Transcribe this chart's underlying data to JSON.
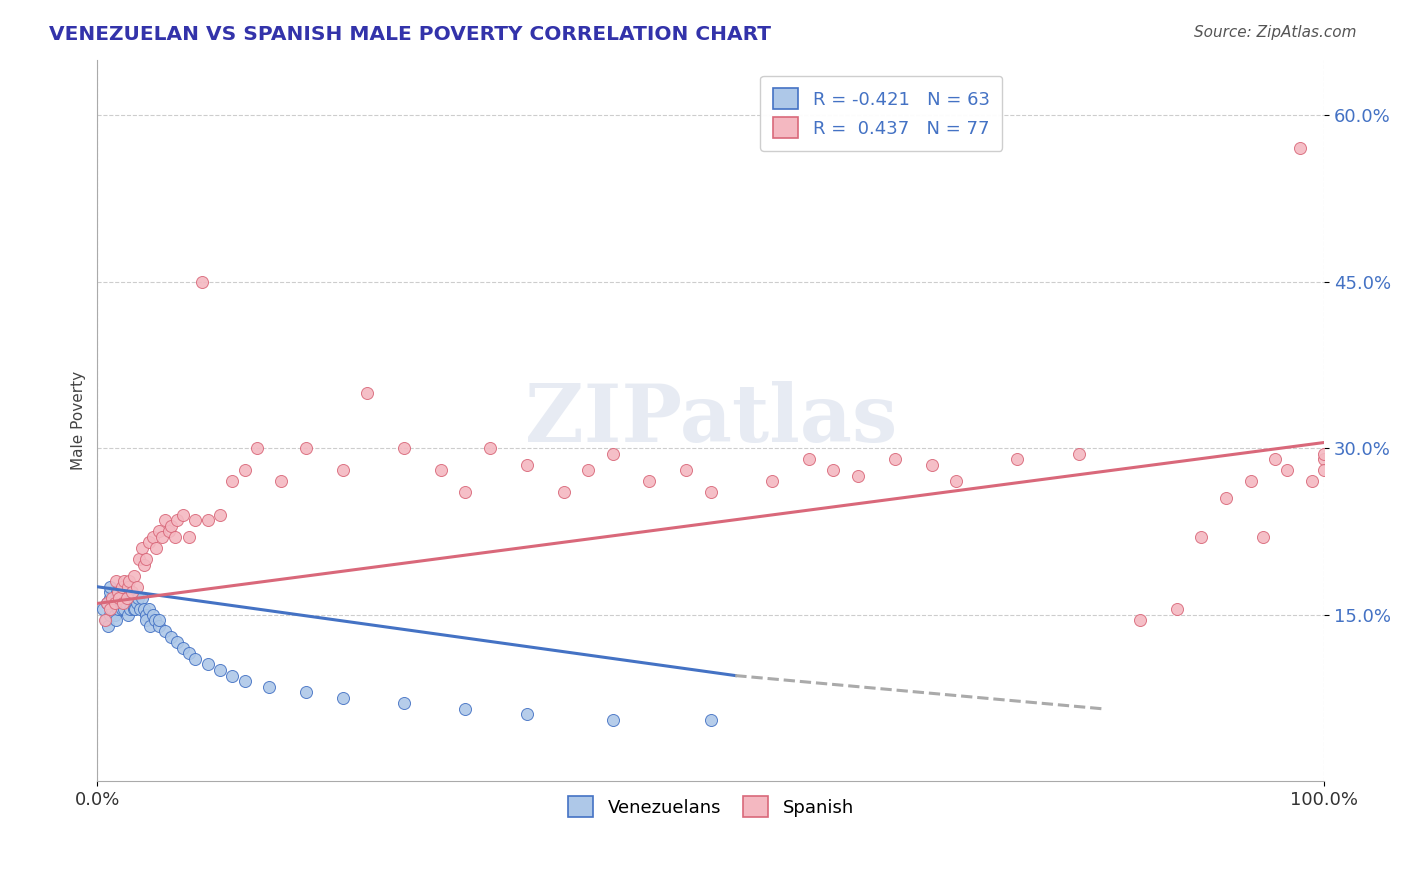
{
  "title": "VENEZUELAN VS SPANISH MALE POVERTY CORRELATION CHART",
  "source": "Source: ZipAtlas.com",
  "ylabel": "Male Poverty",
  "xlim": [
    0.0,
    1.0
  ],
  "ylim": [
    0.0,
    0.65
  ],
  "xtick_positions": [
    0.0,
    1.0
  ],
  "xtick_labels": [
    "0.0%",
    "100.0%"
  ],
  "ytick_values": [
    0.15,
    0.3,
    0.45,
    0.6
  ],
  "ytick_labels": [
    "15.0%",
    "30.0%",
    "45.0%",
    "60.0%"
  ],
  "legend_r1": "R = -0.421",
  "legend_n1": "N = 63",
  "legend_r2": "R =  0.437",
  "legend_n2": "N = 77",
  "color_venezuelan_fill": "#aec8e8",
  "color_venezuelan_edge": "#4472c4",
  "color_spanish_fill": "#f4b8c1",
  "color_spanish_edge": "#d9687a",
  "color_line_venezuelan": "#4472c4",
  "color_line_spanish": "#d9687a",
  "color_line_dash": "#aaaaaa",
  "background_color": "#ffffff",
  "watermark_text": "ZIPatlas",
  "title_color": "#3333aa",
  "source_color": "#555555",
  "ytick_color": "#4472c4",
  "venezuelan_x": [
    0.005,
    0.007,
    0.008,
    0.009,
    0.01,
    0.01,
    0.01,
    0.01,
    0.012,
    0.013,
    0.014,
    0.015,
    0.015,
    0.016,
    0.017,
    0.018,
    0.019,
    0.02,
    0.02,
    0.02,
    0.021,
    0.022,
    0.023,
    0.024,
    0.025,
    0.026,
    0.027,
    0.028,
    0.029,
    0.03,
    0.03,
    0.031,
    0.032,
    0.033,
    0.035,
    0.036,
    0.038,
    0.04,
    0.04,
    0.042,
    0.043,
    0.045,
    0.047,
    0.05,
    0.05,
    0.055,
    0.06,
    0.065,
    0.07,
    0.075,
    0.08,
    0.09,
    0.1,
    0.11,
    0.12,
    0.14,
    0.17,
    0.2,
    0.25,
    0.3,
    0.35,
    0.42,
    0.5
  ],
  "venezuelan_y": [
    0.155,
    0.145,
    0.16,
    0.14,
    0.165,
    0.17,
    0.15,
    0.175,
    0.155,
    0.16,
    0.15,
    0.165,
    0.145,
    0.17,
    0.155,
    0.165,
    0.16,
    0.155,
    0.16,
    0.17,
    0.165,
    0.155,
    0.16,
    0.165,
    0.15,
    0.17,
    0.155,
    0.165,
    0.16,
    0.155,
    0.165,
    0.155,
    0.16,
    0.165,
    0.155,
    0.165,
    0.155,
    0.15,
    0.145,
    0.155,
    0.14,
    0.15,
    0.145,
    0.14,
    0.145,
    0.135,
    0.13,
    0.125,
    0.12,
    0.115,
    0.11,
    0.105,
    0.1,
    0.095,
    0.09,
    0.085,
    0.08,
    0.075,
    0.07,
    0.065,
    0.06,
    0.055,
    0.055
  ],
  "spanish_x": [
    0.006,
    0.008,
    0.01,
    0.012,
    0.014,
    0.015,
    0.017,
    0.018,
    0.02,
    0.021,
    0.022,
    0.024,
    0.025,
    0.026,
    0.028,
    0.03,
    0.032,
    0.034,
    0.036,
    0.038,
    0.04,
    0.042,
    0.045,
    0.048,
    0.05,
    0.053,
    0.055,
    0.058,
    0.06,
    0.063,
    0.065,
    0.07,
    0.075,
    0.08,
    0.085,
    0.09,
    0.1,
    0.11,
    0.12,
    0.13,
    0.15,
    0.17,
    0.2,
    0.22,
    0.25,
    0.28,
    0.3,
    0.32,
    0.35,
    0.38,
    0.4,
    0.42,
    0.45,
    0.48,
    0.5,
    0.55,
    0.58,
    0.6,
    0.62,
    0.65,
    0.68,
    0.7,
    0.75,
    0.8,
    0.85,
    0.88,
    0.9,
    0.92,
    0.94,
    0.95,
    0.96,
    0.97,
    0.98,
    0.99,
    1.0,
    1.0,
    1.0
  ],
  "spanish_y": [
    0.145,
    0.16,
    0.155,
    0.165,
    0.16,
    0.18,
    0.17,
    0.165,
    0.175,
    0.16,
    0.18,
    0.165,
    0.175,
    0.18,
    0.17,
    0.185,
    0.175,
    0.2,
    0.21,
    0.195,
    0.2,
    0.215,
    0.22,
    0.21,
    0.225,
    0.22,
    0.235,
    0.225,
    0.23,
    0.22,
    0.235,
    0.24,
    0.22,
    0.235,
    0.45,
    0.235,
    0.24,
    0.27,
    0.28,
    0.3,
    0.27,
    0.3,
    0.28,
    0.35,
    0.3,
    0.28,
    0.26,
    0.3,
    0.285,
    0.26,
    0.28,
    0.295,
    0.27,
    0.28,
    0.26,
    0.27,
    0.29,
    0.28,
    0.275,
    0.29,
    0.285,
    0.27,
    0.29,
    0.295,
    0.145,
    0.155,
    0.22,
    0.255,
    0.27,
    0.22,
    0.29,
    0.28,
    0.57,
    0.27,
    0.29,
    0.295,
    0.28
  ]
}
